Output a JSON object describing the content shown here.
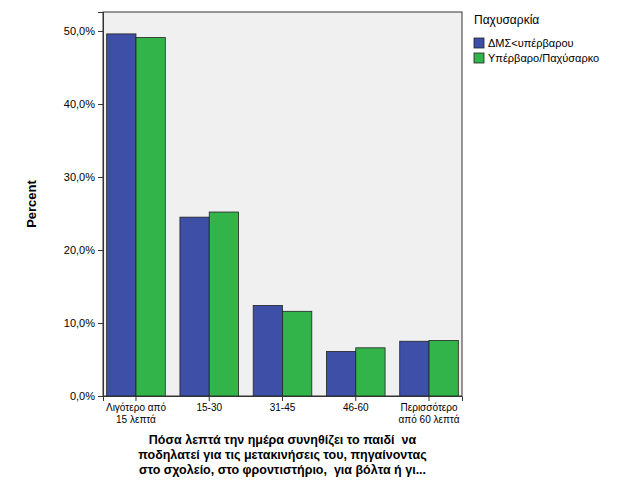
{
  "chart_data": {
    "type": "bar",
    "x_label": "Πόσα λεπτά την ημέρα συνηθίζει το παιδί  να\nποδηλατεί για τις μετακινήσεις του, πηγαίνοντας\nστο σχολείο, στο φροντιστήριο,  για βόλτα ή γι...",
    "y_label": "Percent",
    "legend_title": "Παχυσαρκία",
    "legend": "top-right",
    "categories": [
      "Λιγότερο από\n15 λεπτά",
      "15-30",
      "31-45",
      "46-60",
      "Περισσότερο\nαπό 60 λεπτά"
    ],
    "series": [
      {
        "name": "ΔΜΣ<υπέρβαρου",
        "color": "#3e4fa7",
        "values": [
          49.6,
          24.5,
          12.4,
          6.1,
          7.5
        ]
      },
      {
        "name": "Υπέρβαρο/Παχύσαρκο",
        "color": "#33b44a",
        "values": [
          49.1,
          25.2,
          11.6,
          6.6,
          7.6
        ]
      }
    ],
    "ylim": [
      0,
      52.6
    ],
    "yticks": [
      {
        "value": 0,
        "label": "0,0%"
      },
      {
        "value": 10,
        "label": "10,0%"
      },
      {
        "value": 20,
        "label": "20,0%"
      },
      {
        "value": 30,
        "label": "30,0%"
      },
      {
        "value": 40,
        "label": "40,0%"
      },
      {
        "value": 50,
        "label": "50,0%"
      }
    ],
    "grid": false
  }
}
